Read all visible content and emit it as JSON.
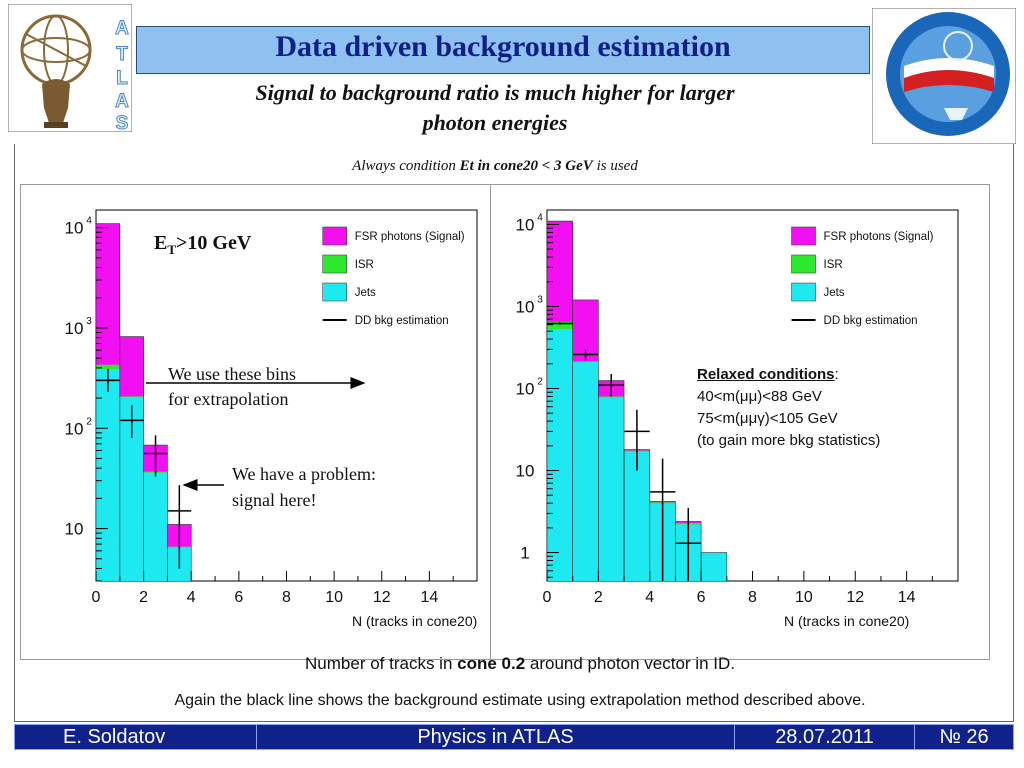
{
  "header": {
    "title": "Data driven background estimation",
    "subtitle_line1": "Signal to background ratio is much higher for larger",
    "subtitle_line2": "photon energies",
    "condition_prefix": "Always condition ",
    "condition_bold": "Et in cone20 < 3 GeV",
    "condition_suffix": " is used",
    "logo_left_text": "ATLAS"
  },
  "chart_data": [
    {
      "type": "bar",
      "stacked": true,
      "y_scale": "log",
      "xlim": [
        0,
        16
      ],
      "ylim": [
        3,
        15000
      ],
      "x_ticks": [
        "0",
        "2",
        "4",
        "6",
        "8",
        "10",
        "12",
        "14"
      ],
      "y_ticks": [
        {
          "base": "10",
          "exp": "4"
        },
        {
          "base": "10",
          "exp": "3"
        },
        {
          "base": "10",
          "exp": "2"
        },
        {
          "base": "10",
          "exp": ""
        }
      ],
      "xlabel": "N (tracks in cone20)",
      "annotation": {
        "main": "E",
        "sub": "T",
        "rest": ">10 GeV"
      },
      "legend": {
        "placement": "top-right",
        "entries": [
          "FSR photons (Signal)",
          "ISR",
          "Jets",
          "DD bkg estimation"
        ]
      },
      "bin_edges": [
        0,
        1,
        2,
        3,
        4
      ],
      "series": [
        {
          "name": "Jets",
          "color": "#1ee8f0",
          "values": [
            390,
            205,
            36,
            6.5
          ]
        },
        {
          "name": "ISR",
          "color": "#2ee82e",
          "values": [
            430,
            208,
            37,
            6.6
          ]
        },
        {
          "name": "FSR photons (Signal)",
          "color": "#f20ff2",
          "values": [
            11000,
            820,
            68,
            11
          ]
        }
      ],
      "dd_estimate": [
        {
          "x": 0.5,
          "y": 300,
          "ylo": 230,
          "yhi": 390
        },
        {
          "x": 1.5,
          "y": 120,
          "ylo": 80,
          "yhi": 170
        },
        {
          "x": 2.5,
          "y": 56,
          "ylo": 33,
          "yhi": 85
        },
        {
          "x": 3.5,
          "y": 15,
          "ylo": 4,
          "yhi": 27
        }
      ]
    },
    {
      "type": "bar",
      "stacked": true,
      "y_scale": "log",
      "xlim": [
        0,
        16
      ],
      "ylim": [
        0.45,
        15000
      ],
      "x_ticks": [
        "0",
        "2",
        "4",
        "6",
        "8",
        "10",
        "12",
        "14"
      ],
      "y_ticks": [
        {
          "base": "10",
          "exp": "4"
        },
        {
          "base": "10",
          "exp": "3"
        },
        {
          "base": "10",
          "exp": "2"
        },
        {
          "base": "10",
          "exp": ""
        },
        {
          "base": "1",
          "exp": ""
        }
      ],
      "xlabel": "N (tracks in cone20)",
      "legend": {
        "placement": "top-right",
        "entries": [
          "FSR photons (Signal)",
          "ISR",
          "Jets",
          "DD bkg estimation"
        ]
      },
      "bin_edges": [
        0,
        1,
        2,
        3,
        4,
        5,
        6,
        7
      ],
      "series": [
        {
          "name": "Jets",
          "color": "#1ee8f0",
          "values": [
            530,
            210,
            78,
            17,
            4,
            2.2,
            1
          ]
        },
        {
          "name": "ISR",
          "color": "#2ee82e",
          "values": [
            650,
            215,
            80,
            17.5,
            4.1,
            2.3,
            1
          ]
        },
        {
          "name": "FSR photons (Signal)",
          "color": "#f20ff2",
          "values": [
            11000,
            1200,
            125,
            18,
            4.2,
            2.4,
            1
          ]
        }
      ],
      "dd_estimate": [
        {
          "x": 0.5,
          "y": 620,
          "ylo": 600,
          "yhi": 640
        },
        {
          "x": 1.5,
          "y": 260,
          "ylo": 220,
          "yhi": 300
        },
        {
          "x": 2.5,
          "y": 110,
          "ylo": 80,
          "yhi": 150
        },
        {
          "x": 3.5,
          "y": 30,
          "ylo": 10,
          "yhi": 55
        },
        {
          "x": 4.5,
          "y": 5.5,
          "ylo": 0.45,
          "yhi": 14
        },
        {
          "x": 5.5,
          "y": 1.3,
          "ylo": 0.45,
          "yhi": 3.5
        }
      ]
    }
  ],
  "annotations": {
    "bins_line1": "We use these bins",
    "bins_line2": "for extrapolation",
    "problem_line1": "We have a problem:",
    "problem_line2": "signal here!",
    "relaxed_header": "Relaxed conditions",
    "relaxed_colon": ":",
    "relaxed_line1": "40<m(μμ)<88 GeV",
    "relaxed_line2": "75<m(μμγ)<105 GeV",
    "relaxed_line3": "(to gain more bkg statistics)"
  },
  "caption": {
    "line1_prefix": "Number of tracks in ",
    "line1_bold": "cone 0.2",
    "line1_suffix": " around photon vector in ID.",
    "line2": "Again the black line shows the background estimate using extrapolation method described above."
  },
  "footer": {
    "author": "E. Soldatov",
    "event": "Physics in ATLAS",
    "date": "28.07.2011",
    "page": "№ 26"
  }
}
